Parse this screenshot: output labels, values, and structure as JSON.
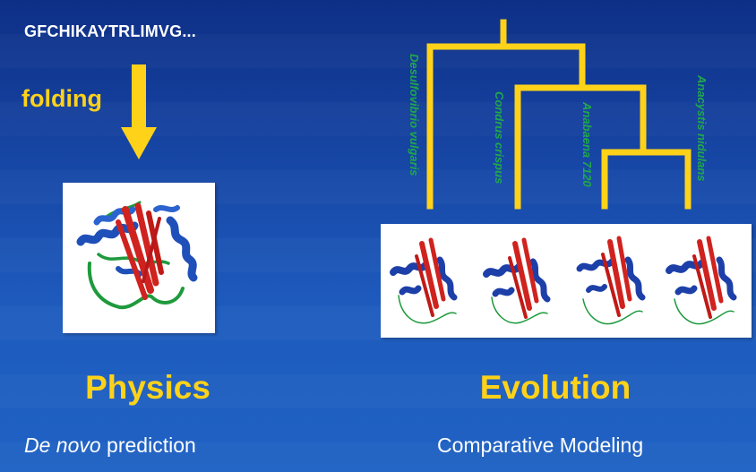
{
  "sequence_text": "GFCHIKAYTRLIMVG...",
  "folding_label": "folding",
  "tree": {
    "species": [
      "Desulfovibrio vulgaris",
      "Condrus crispus",
      "Anabaena 7120",
      "Anacystis nidulans"
    ]
  },
  "headings": {
    "left": "Physics",
    "right": "Evolution"
  },
  "subtitles": {
    "left_italic": "De novo",
    "left_rest": " prediction",
    "right": "Comparative Modeling"
  },
  "colors": {
    "background": "#1747a6",
    "accent_yellow": "#ffd21a",
    "species_green": "#20a84a",
    "helix_blue": "#1f4fb8",
    "strand_red": "#d0221e",
    "coil_green": "#1e9a3c"
  },
  "icons": {
    "fold_arrow": "down-arrow-icon",
    "protein_structure": "protein-ribbon-icon"
  }
}
